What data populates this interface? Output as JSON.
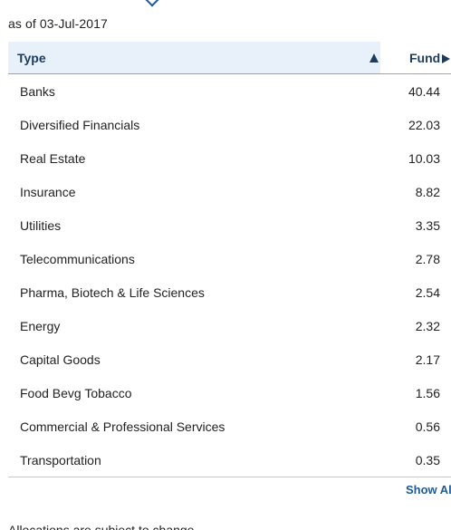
{
  "as_of": "as of 03-Jul-2017",
  "table": {
    "headers": {
      "type": "Type",
      "fund": "Fund"
    },
    "rows": [
      {
        "type": "Banks",
        "fund": "40.44"
      },
      {
        "type": "Diversified Financials",
        "fund": "22.03"
      },
      {
        "type": "Real Estate",
        "fund": "10.03"
      },
      {
        "type": "Insurance",
        "fund": "8.82"
      },
      {
        "type": "Utilities",
        "fund": "3.35"
      },
      {
        "type": "Telecommunications",
        "fund": "2.78"
      },
      {
        "type": "Pharma, Biotech & Life Sciences",
        "fund": "2.54"
      },
      {
        "type": "Energy",
        "fund": "2.32"
      },
      {
        "type": "Capital Goods",
        "fund": "2.17"
      },
      {
        "type": "Food Bevg Tobacco",
        "fund": "1.56"
      },
      {
        "type": "Commercial & Professional Services",
        "fund": "0.56"
      },
      {
        "type": "Transportation",
        "fund": "0.35"
      }
    ]
  },
  "show_all_label": "Show All",
  "disclaimer": "Allocations are subject to change.",
  "icons": {
    "top_caret": "chevron-down-icon",
    "sort_indicator": "sort-ascending-icon",
    "fund_column_arrow": "play-right-icon"
  },
  "colors": {
    "header_bg": "#e8f1fa",
    "header_text": "#1e3b5a",
    "link": "#1f5a96"
  }
}
